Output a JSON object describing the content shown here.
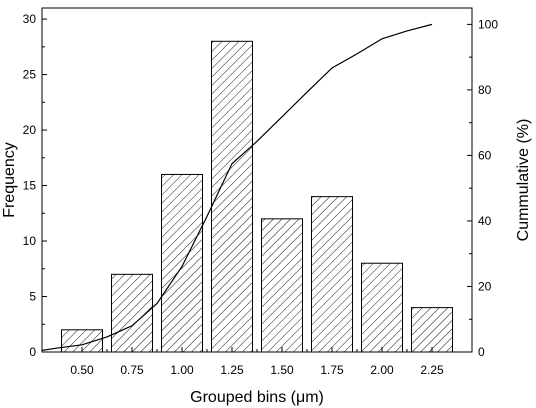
{
  "chart_data": {
    "type": "bar",
    "title": "",
    "xlabel": "Grouped bins (μm)",
    "ylabel": "Frequency",
    "y2label": "Cummulative (%)",
    "categories": [
      "0.50",
      "0.75",
      "1.00",
      "1.25",
      "1.50",
      "1.75",
      "2.00",
      "2.25"
    ],
    "x": [
      0.5,
      0.75,
      1.0,
      1.25,
      1.5,
      1.75,
      2.0,
      2.25
    ],
    "values": [
      2,
      7,
      16,
      28,
      12,
      14,
      8,
      4
    ],
    "xlim": [
      0.3,
      2.45
    ],
    "ylim": [
      0,
      31
    ],
    "y2lim": [
      0,
      105
    ],
    "yticks": [
      0,
      5,
      10,
      15,
      20,
      25,
      30
    ],
    "y2ticks": [
      0,
      20,
      40,
      60,
      80,
      100
    ],
    "bar_fill": "diagonal-hatch",
    "grid": false,
    "legend": "none",
    "series_line": {
      "axis": "y2",
      "x": [
        0.3,
        0.375,
        0.5,
        0.625,
        0.75,
        0.875,
        1.0,
        1.125,
        1.25,
        1.375,
        1.5,
        1.625,
        1.75,
        1.875,
        2.0,
        2.125,
        2.25
      ],
      "values": [
        0.5,
        1.2,
        2.2,
        4.6,
        8.0,
        14.8,
        26.1,
        41.4,
        57.5,
        64.3,
        71.8,
        79.3,
        86.7,
        91.0,
        95.6,
        98.0,
        100
      ]
    },
    "colors": {
      "bar_edge": "#000000",
      "hatch": "#000000",
      "line": "#000000",
      "background": "#ffffff"
    }
  }
}
